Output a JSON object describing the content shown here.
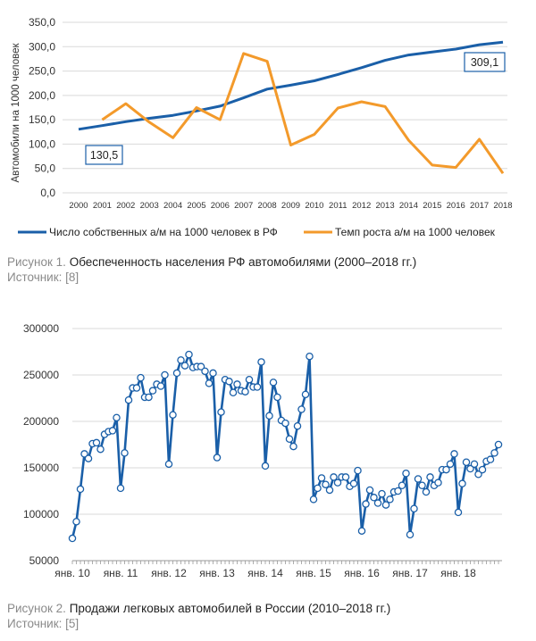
{
  "chart_data": [
    {
      "type": "line",
      "ylabel": "Автомобили на 1000 человек",
      "ylim": [
        0,
        350
      ],
      "yticks": [
        "0,0",
        "50,0",
        "100,0",
        "150,0",
        "200,0",
        "250,0",
        "300,0",
        "350,0"
      ],
      "grid": true,
      "legend_position": "bottom",
      "categories": [
        "2000",
        "2001",
        "2002",
        "2003",
        "2004",
        "2005",
        "2006",
        "2007",
        "2008",
        "2009",
        "2010",
        "2011",
        "2012",
        "2013",
        "2014",
        "2015",
        "2016",
        "2017",
        "2018"
      ],
      "series": [
        {
          "name": "Число собственных а/м на 1000 человек в РФ",
          "color": "#1a5fa8",
          "values": [
            130.5,
            138,
            146,
            153,
            159,
            168,
            178,
            195,
            213,
            221,
            230,
            243,
            257,
            272,
            283,
            289,
            295,
            304,
            309.1
          ]
        },
        {
          "name": "Темп роста а/м на 1000 человек",
          "color": "#f39a2b",
          "values": [
            null,
            150,
            183,
            145,
            113,
            175,
            150,
            286,
            270,
            98,
            120,
            174,
            187,
            177,
            108,
            57,
            52,
            110,
            40
          ]
        }
      ],
      "annotations": [
        {
          "text": "130,5",
          "series": 0,
          "index": 0
        },
        {
          "text": "309,1",
          "series": 0,
          "index": 18
        }
      ]
    },
    {
      "type": "line",
      "ylim": [
        50000,
        300000
      ],
      "yticks": [
        "50000",
        "100000",
        "150000",
        "200000",
        "250000",
        "300000"
      ],
      "xticks": [
        "янв. 10",
        "янв. 11",
        "янв. 12",
        "янв. 13",
        "янв. 14",
        "янв. 15",
        "янв. 16",
        "янв. 17",
        "янв. 18"
      ],
      "grid": true,
      "series": [
        {
          "color": "#1a5fa8",
          "values": [
            74000,
            92000,
            127000,
            165000,
            160000,
            176000,
            177000,
            170000,
            186000,
            189000,
            190000,
            204000,
            128000,
            166000,
            223000,
            236000,
            236000,
            247000,
            226000,
            226000,
            233000,
            240000,
            238000,
            250000,
            154000,
            207000,
            252000,
            266000,
            260000,
            272000,
            258000,
            259000,
            259000,
            254000,
            241000,
            252000,
            161000,
            210000,
            245000,
            243000,
            231000,
            240000,
            233000,
            232000,
            245000,
            237000,
            237000,
            264000,
            152000,
            206000,
            242000,
            226000,
            201000,
            198000,
            181000,
            173000,
            195000,
            213000,
            229000,
            270000,
            116000,
            128000,
            139000,
            132000,
            126000,
            140000,
            134000,
            140000,
            140000,
            130000,
            133000,
            147000,
            82000,
            111000,
            126000,
            118000,
            112000,
            122000,
            110000,
            116000,
            124000,
            125000,
            131000,
            144000,
            78000,
            106000,
            138000,
            131000,
            124000,
            140000,
            131000,
            134000,
            148000,
            148000,
            154000,
            165000,
            102000,
            133000,
            156000,
            149000,
            154000,
            143000,
            148000,
            157000,
            159000,
            166000,
            175000
          ]
        }
      ]
    }
  ],
  "captions": {
    "fig1": {
      "label": "Рисунок 1.",
      "title": "Обеспеченность населения РФ автомобилями (2000–2018 гг.)",
      "source_label": "Источник:",
      "source_ref": "[8]"
    },
    "fig2": {
      "label": "Рисунок 2.",
      "title": "Продажи легковых автомобилей в России (2010–2018 гг.)",
      "source_label": "Источник:",
      "source_ref": "[5]"
    }
  }
}
